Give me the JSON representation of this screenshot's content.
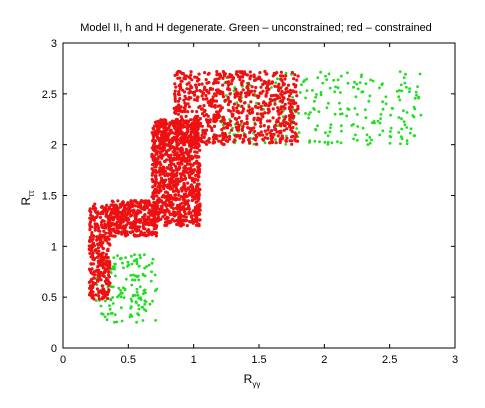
{
  "chart_data": {
    "type": "scatter",
    "title": "Model II, h and H degenerate. Green – unconstrained; red – constrained",
    "xlabel": {
      "base": "R",
      "sub": "γγ"
    },
    "ylabel": {
      "base": "R",
      "sub": "ττ"
    },
    "xlim": [
      0,
      3
    ],
    "ylim": [
      0,
      3
    ],
    "xticks": [
      "0",
      "0.5",
      "1",
      "1.5",
      "2",
      "2.5",
      "3"
    ],
    "yticks": [
      "0",
      "0.5",
      "1",
      "1.5",
      "2",
      "2.5",
      "3"
    ],
    "grid": false,
    "legend": "none",
    "series": [
      {
        "color": "#22dd22",
        "regions": [
          {
            "x": [
              0.25,
              0.72
            ],
            "y": [
              0.25,
              0.92
            ],
            "n": 150
          },
          {
            "x": [
              1.2,
              2.75
            ],
            "y": [
              2.0,
              2.72
            ],
            "n": 260
          }
        ]
      },
      {
        "color": "#ee1111",
        "regions": [
          {
            "x": [
              0.2,
              0.36
            ],
            "y": [
              0.48,
              1.42
            ],
            "n": 320
          },
          {
            "x": [
              0.36,
              0.72
            ],
            "y": [
              1.1,
              1.45
            ],
            "n": 360
          },
          {
            "x": [
              0.68,
              1.05
            ],
            "y": [
              1.2,
              2.25
            ],
            "n": 950
          },
          {
            "x": [
              0.85,
              1.8
            ],
            "y": [
              2.0,
              2.72
            ],
            "n": 800
          }
        ]
      }
    ]
  }
}
